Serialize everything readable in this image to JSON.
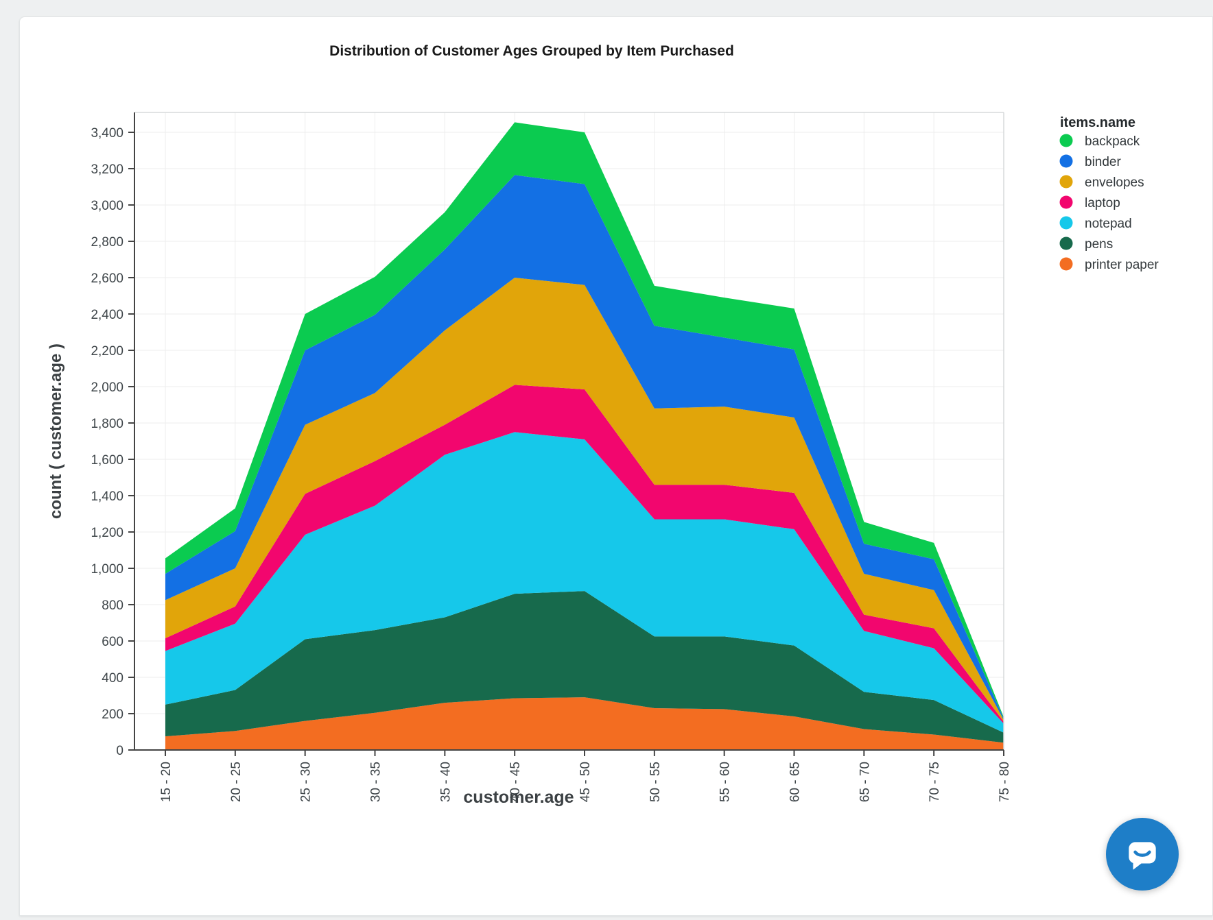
{
  "page": {
    "background": "#eef0f1",
    "card_background": "#ffffff"
  },
  "chart": {
    "title": "Distribution of Customer Ages Grouped by Item Purchased",
    "x_axis_title": "customer.age",
    "y_axis_title": "count ( customer.age )",
    "y_tick_labels": [
      "0",
      "200",
      "400",
      "600",
      "800",
      "1,000",
      "1,200",
      "1,400",
      "1,600",
      "1,800",
      "2,000",
      "2,200",
      "2,400",
      "2,600",
      "2,800",
      "3,000",
      "3,200",
      "3,400"
    ],
    "title_color": "#1a1a1a",
    "tick_label_color": "#3e4549",
    "axis_title_color": "#3b4043",
    "grid_color": "#ededed",
    "axis_line_color": "#444444",
    "frame_color": "#d7dadb"
  },
  "legend": {
    "title": "items.name"
  },
  "chart_data": {
    "type": "area",
    "stacked": true,
    "categories": [
      "15 - 20",
      "20 - 25",
      "25 - 30",
      "30 - 35",
      "35 - 40",
      "40 - 45",
      "45 - 50",
      "50 - 55",
      "55 - 60",
      "60 - 65",
      "65 - 70",
      "70 - 75",
      "75 - 80"
    ],
    "series": [
      {
        "name": "backpack",
        "color": "#0bcb50",
        "values": [
          85,
          125,
          200,
          210,
          205,
          290,
          285,
          220,
          220,
          225,
          120,
          90,
          7
        ]
      },
      {
        "name": "binder",
        "color": "#1370e4",
        "values": [
          145,
          205,
          410,
          430,
          445,
          565,
          555,
          455,
          380,
          375,
          165,
          170,
          8
        ]
      },
      {
        "name": "envelopes",
        "color": "#e1a50a",
        "values": [
          210,
          210,
          380,
          375,
          520,
          590,
          575,
          420,
          430,
          415,
          225,
          210,
          10
        ]
      },
      {
        "name": "laptop",
        "color": "#f2066e",
        "values": [
          70,
          95,
          225,
          245,
          165,
          260,
          275,
          190,
          190,
          200,
          90,
          110,
          10
        ]
      },
      {
        "name": "notepad",
        "color": "#16c8ea",
        "values": [
          295,
          365,
          575,
          685,
          895,
          890,
          835,
          645,
          645,
          640,
          335,
          285,
          50
        ]
      },
      {
        "name": "pens",
        "color": "#176a4c",
        "values": [
          175,
          225,
          450,
          455,
          470,
          575,
          585,
          395,
          400,
          390,
          205,
          190,
          55
        ]
      },
      {
        "name": "printer paper",
        "color": "#f36d21",
        "values": [
          75,
          105,
          160,
          205,
          260,
          285,
          290,
          230,
          225,
          185,
          115,
          85,
          40
        ]
      }
    ],
    "stack_order_bottom_to_top": [
      "printer paper",
      "pens",
      "notepad",
      "laptop",
      "envelopes",
      "binder",
      "backpack"
    ],
    "title": "Distribution of Customer Ages Grouped by Item Purchased",
    "xlabel": "customer.age",
    "ylabel": "count ( customer.age )",
    "ylim": [
      0,
      3400
    ],
    "y_step": 200,
    "grid": true,
    "legend_title": "items.name",
    "legend_position": "right"
  },
  "ui": {
    "chat_button_color": "#1e7ec8"
  }
}
